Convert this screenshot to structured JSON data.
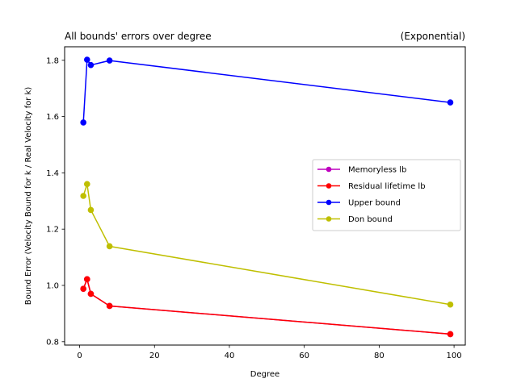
{
  "chart_data": {
    "type": "line",
    "title_left": "All bounds' errors over degree",
    "title_right": "(Exponential)",
    "xlabel": "Degree",
    "ylabel": "Bound Error (Velocity Bound for k / Real Velocity for k)",
    "xlim": [
      -4,
      103
    ],
    "ylim": [
      0.788,
      1.848
    ],
    "xticks": [
      0,
      20,
      40,
      60,
      80,
      100
    ],
    "xtick_labels": [
      "0",
      "20",
      "40",
      "60",
      "80",
      "100"
    ],
    "yticks": [
      0.8,
      1.0,
      1.2,
      1.4,
      1.6,
      1.8
    ],
    "ytick_labels": [
      "0.8",
      "1.0",
      "1.2",
      "1.4",
      "1.6",
      "1.8"
    ],
    "grid": false,
    "legend_position": "center-right",
    "series": [
      {
        "name": "Memoryless lb",
        "color": "#bf00bf",
        "x": [
          1,
          2,
          3,
          8,
          99
        ],
        "y": [
          0.988,
          1.022,
          0.97,
          0.927,
          0.827
        ]
      },
      {
        "name": "Residual lifetime lb",
        "color": "#ff0000",
        "x": [
          1,
          2,
          3,
          8,
          99
        ],
        "y": [
          0.988,
          1.022,
          0.97,
          0.927,
          0.827
        ]
      },
      {
        "name": "Upper bound",
        "color": "#0000ff",
        "x": [
          1,
          2,
          3,
          8,
          99
        ],
        "y": [
          1.579,
          1.802,
          1.783,
          1.799,
          1.65
        ]
      },
      {
        "name": "Don bound",
        "color": "#bfbf00",
        "x": [
          1,
          2,
          3,
          8,
          99
        ],
        "y": [
          1.318,
          1.36,
          1.268,
          1.139,
          0.932
        ]
      }
    ]
  }
}
